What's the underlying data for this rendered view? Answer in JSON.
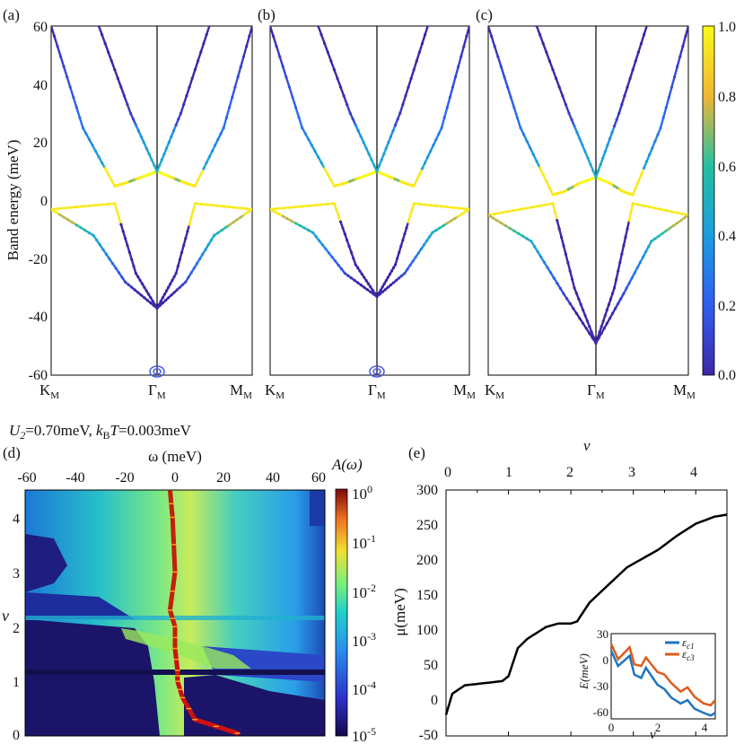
{
  "figure": {
    "top_row": {
      "panel_labels": [
        "(a)",
        "(b)",
        "(c)"
      ],
      "ylabel": "Band energy (meV)",
      "yticks": [
        "60",
        "40",
        "20",
        "0",
        "-20",
        "-40",
        "-60"
      ],
      "xticks": [
        "K",
        "Γ",
        "M"
      ],
      "xtick_sub": "M",
      "colorbar_ticks": [
        "1.0",
        "0.8",
        "0.6",
        "0.4",
        "0.2",
        "0.0"
      ]
    },
    "param_text": {
      "u": "U",
      "u_sub": "2",
      "u_val": "=0.70meV, ",
      "k": "k",
      "k_sub": "B",
      "t": "T",
      "t_val": "=0.003meV"
    },
    "panel_d": {
      "label": "(d)",
      "xlabel": "ω (meV)",
      "xticks": [
        "-60",
        "-40",
        "-20",
        "0",
        "20",
        "40",
        "60"
      ],
      "ylabel": "ν",
      "yticks": [
        "4",
        "3",
        "2",
        "1",
        "0"
      ],
      "colorbar_title": "A(ω)",
      "colorbar_ticks": [
        "10",
        "10",
        "10",
        "10",
        "10",
        "10"
      ],
      "colorbar_exps": [
        "0",
        "-1",
        "-2",
        "-3",
        "-4",
        "-5"
      ]
    },
    "panel_e": {
      "label": "(e)",
      "xlabel": "ν",
      "xticks": [
        "0",
        "1",
        "2",
        "3",
        "4"
      ],
      "ylabel": "μ(meV)",
      "yticks": [
        "300",
        "250",
        "200",
        "150",
        "100",
        "50",
        "0",
        "-50"
      ],
      "inset": {
        "ylabel": "E(meV)",
        "yticks": [
          "30",
          "0",
          "-30",
          "-60"
        ],
        "xticks": [
          "0",
          "2",
          "4"
        ],
        "xlabel": "ν",
        "legend": [
          {
            "sym": "ε",
            "sub": "c1"
          },
          {
            "sym": "ε",
            "sub": "c3"
          }
        ]
      }
    }
  },
  "chart_data": [
    {
      "type": "line",
      "panel": "(a)",
      "ylabel": "Band energy (meV)",
      "ylim": [
        -60,
        60
      ],
      "xticks": [
        "K_M",
        "Γ_M",
        "M_M"
      ],
      "colorbar": {
        "range": [
          0.0,
          1.0
        ],
        "colors": [
          "#3e26a8",
          "#2a87f0",
          "#17c0b0",
          "#a8c53c",
          "#fbaa3a",
          "#f9fb15"
        ]
      },
      "curves": [
        {
          "x": [
            -1.0,
            -0.7,
            -0.4,
            -0.3,
            -0.15,
            0.0
          ],
          "y": [
            60,
            25,
            5,
            6,
            8,
            10
          ]
        },
        {
          "x": [
            -0.55,
            -0.25,
            0.0
          ],
          "y": [
            60,
            30,
            10
          ]
        },
        {
          "x": [
            0.0,
            0.15,
            0.3,
            0.4,
            0.7,
            1.0
          ],
          "y": [
            10,
            8,
            6,
            5,
            25,
            60
          ]
        },
        {
          "x": [
            0.0,
            0.25,
            0.55
          ],
          "y": [
            10,
            30,
            60
          ]
        },
        {
          "x": [
            -1.0,
            -0.4,
            -0.2,
            0.0
          ],
          "y": [
            -3,
            -1,
            -25,
            -37
          ]
        },
        {
          "x": [
            -1.0,
            -0.6,
            -0.3,
            0.0
          ],
          "y": [
            -3,
            -12,
            -28,
            -37
          ]
        },
        {
          "x": [
            0.0,
            0.2,
            0.4,
            1.0
          ],
          "y": [
            -37,
            -25,
            -1,
            -3
          ]
        },
        {
          "x": [
            0.0,
            0.3,
            0.6,
            1.0
          ],
          "y": [
            -37,
            -28,
            -12,
            -3
          ]
        }
      ]
    },
    {
      "type": "line",
      "panel": "(b)",
      "ylim": [
        -60,
        60
      ],
      "xticks": [
        "K_M",
        "Γ_M",
        "M_M"
      ],
      "curves": [
        {
          "x": [
            -1.0,
            -0.7,
            -0.4,
            -0.3,
            -0.15,
            0.0
          ],
          "y": [
            60,
            25,
            5,
            6,
            8,
            10
          ]
        },
        {
          "x": [
            -0.55,
            -0.25,
            0.0
          ],
          "y": [
            60,
            30,
            10
          ]
        },
        {
          "x": [
            0.0,
            0.15,
            0.3,
            0.4,
            0.7,
            1.0
          ],
          "y": [
            10,
            8,
            6,
            5,
            25,
            60
          ]
        },
        {
          "x": [
            0.0,
            0.25,
            0.55
          ],
          "y": [
            10,
            30,
            60
          ]
        },
        {
          "x": [
            -1.0,
            -0.4,
            -0.2,
            0.0
          ],
          "y": [
            -3,
            -1,
            -22,
            -33
          ]
        },
        {
          "x": [
            -1.0,
            -0.6,
            -0.3,
            0.0
          ],
          "y": [
            -3,
            -11,
            -25,
            -33
          ]
        },
        {
          "x": [
            0.0,
            0.2,
            0.4,
            1.0
          ],
          "y": [
            -33,
            -22,
            -1,
            -3
          ]
        },
        {
          "x": [
            0.0,
            0.3,
            0.6,
            1.0
          ],
          "y": [
            -33,
            -25,
            -11,
            -3
          ]
        }
      ]
    },
    {
      "type": "line",
      "panel": "(c)",
      "ylim": [
        -60,
        60
      ],
      "xticks": [
        "K_M",
        "Γ_M",
        "M_M"
      ],
      "curves": [
        {
          "x": [
            -1.0,
            -0.7,
            -0.4,
            -0.3,
            -0.15,
            0.0
          ],
          "y": [
            60,
            25,
            2,
            3,
            6,
            8
          ]
        },
        {
          "x": [
            -0.55,
            -0.25,
            0.0
          ],
          "y": [
            60,
            30,
            8
          ]
        },
        {
          "x": [
            0.0,
            0.15,
            0.3,
            0.4,
            0.7,
            1.0
          ],
          "y": [
            8,
            6,
            3,
            2,
            25,
            60
          ]
        },
        {
          "x": [
            0.0,
            0.25,
            0.55
          ],
          "y": [
            8,
            30,
            60
          ]
        },
        {
          "x": [
            -1.0,
            -0.4,
            -0.2,
            0.0
          ],
          "y": [
            -5,
            -1,
            -30,
            -49
          ]
        },
        {
          "x": [
            -1.0,
            -0.6,
            -0.3,
            0.0
          ],
          "y": [
            -5,
            -14,
            -32,
            -49
          ]
        },
        {
          "x": [
            0.0,
            0.2,
            0.4,
            1.0
          ],
          "y": [
            -49,
            -30,
            -1,
            -5
          ]
        },
        {
          "x": [
            0.0,
            0.3,
            0.6,
            1.0
          ],
          "y": [
            -49,
            -32,
            -14,
            -5
          ]
        }
      ]
    },
    {
      "type": "heatmap",
      "panel": "(d)",
      "xlabel": "ω (meV)",
      "ylabel": "ν",
      "xlim": [
        -60,
        60
      ],
      "ylim": [
        0,
        4.5
      ],
      "colorbar": {
        "label": "A(ω)",
        "scale": "log",
        "range": [
          1e-05,
          1
        ]
      },
      "peak_line": {
        "nu": [
          0.05,
          0.3,
          0.7,
          1.0,
          1.2,
          1.6,
          2.0,
          2.3,
          3.0,
          4.0,
          4.5
        ],
        "omega": [
          25,
          8,
          3,
          1,
          1,
          0,
          0,
          -2,
          0,
          -1,
          -2
        ]
      }
    },
    {
      "type": "line",
      "panel": "(e)",
      "xlabel": "ν",
      "ylabel": "μ(meV)",
      "xlim": [
        0,
        4.5
      ],
      "ylim": [
        -50,
        300
      ],
      "x": [
        0.0,
        0.1,
        0.3,
        0.6,
        0.9,
        1.0,
        1.15,
        1.3,
        1.6,
        1.8,
        2.0,
        2.1,
        2.3,
        2.6,
        2.9,
        3.1,
        3.4,
        3.7,
        4.0,
        4.3,
        4.5
      ],
      "y": [
        -20,
        10,
        22,
        25,
        28,
        35,
        75,
        88,
        105,
        110,
        110,
        113,
        140,
        165,
        190,
        200,
        215,
        235,
        252,
        262,
        265
      ]
    },
    {
      "type": "line",
      "panel": "(e) inset",
      "ylabel": "E(meV)",
      "xlabel": "ν",
      "xlim": [
        0,
        4.5
      ],
      "ylim": [
        -70,
        30
      ],
      "series": [
        {
          "name": "ε_c1",
          "x": [
            0,
            0.3,
            0.8,
            1.0,
            1.3,
            1.5,
            2.0,
            2.3,
            2.6,
            3.0,
            3.3,
            3.6,
            4.0,
            4.3,
            4.5
          ],
          "y": [
            10,
            -8,
            4,
            -18,
            -22,
            -10,
            -30,
            -35,
            -45,
            -52,
            -48,
            -58,
            -63,
            -66,
            -63
          ]
        },
        {
          "name": "ε_c3",
          "x": [
            0,
            0.3,
            0.8,
            1.0,
            1.3,
            1.5,
            2.0,
            2.3,
            2.6,
            3.0,
            3.3,
            3.6,
            4.0,
            4.3,
            4.5
          ],
          "y": [
            18,
            0,
            14,
            -6,
            -8,
            2,
            -15,
            -18,
            -28,
            -38,
            -33,
            -44,
            -52,
            -54,
            -48
          ]
        }
      ]
    }
  ]
}
